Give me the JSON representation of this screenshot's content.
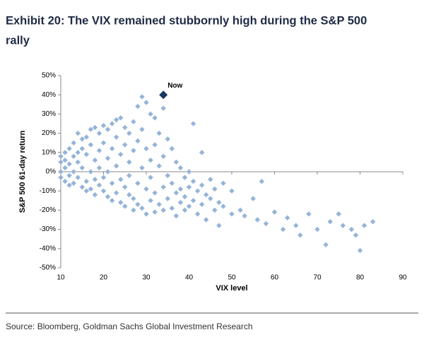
{
  "chart_data": {
    "type": "scatter",
    "title": "Exhibit 20: The VIX remained stubbornly high during the S&P 500 rally",
    "x_label": "VIX level",
    "y_label": "S&P 500 61-day return",
    "source": "Source: Bloomberg, Goldman Sachs Global Investment Research",
    "color": "#95b3d7",
    "x": [
      10,
      10,
      10,
      10,
      11,
      11,
      11,
      11,
      12,
      12,
      12,
      12,
      13,
      13,
      13,
      13,
      14,
      14,
      14,
      14,
      15,
      15,
      15,
      15,
      16,
      16,
      16,
      16,
      17,
      17,
      17,
      17,
      18,
      18,
      18,
      18,
      19,
      19,
      19,
      19,
      20,
      20,
      20,
      20,
      21,
      21,
      21,
      21,
      22,
      22,
      22,
      22,
      23,
      23,
      23,
      23,
      24,
      24,
      24,
      24,
      25,
      25,
      25,
      25,
      26,
      26,
      26,
      26,
      27,
      27,
      27,
      27,
      28,
      28,
      28,
      28,
      29,
      29,
      29,
      29,
      30,
      30,
      30,
      30,
      31,
      31,
      31,
      31,
      32,
      32,
      32,
      32,
      33,
      33,
      33,
      34,
      34,
      34,
      34,
      35,
      35,
      35,
      36,
      36,
      36,
      37,
      37,
      37,
      38,
      38,
      38,
      39,
      39,
      39,
      40,
      40,
      40,
      41,
      41,
      41,
      42,
      42,
      43,
      43,
      43,
      44,
      44,
      45,
      45,
      46,
      46,
      47,
      47,
      48,
      48,
      50,
      50,
      52,
      53,
      55,
      56,
      57,
      58,
      60,
      62,
      63,
      65,
      66,
      68,
      70,
      72,
      73,
      75,
      76,
      78,
      79,
      80,
      81,
      83
    ],
    "values": [
      5,
      0,
      8,
      -3,
      10,
      2,
      -5,
      6,
      12,
      -2,
      4,
      -7,
      15,
      8,
      0,
      -6,
      20,
      10,
      -3,
      5,
      17,
      -8,
      12,
      2,
      18,
      -5,
      9,
      -10,
      22,
      14,
      0,
      -9,
      23,
      6,
      -4,
      -12,
      20,
      11,
      -7,
      2,
      24,
      15,
      -3,
      -10,
      22,
      7,
      -13,
      0,
      25,
      12,
      -6,
      -15,
      27,
      18,
      3,
      -11,
      28,
      9,
      -4,
      -16,
      23,
      14,
      -8,
      -18,
      20,
      5,
      -12,
      -2,
      26,
      11,
      -14,
      -20,
      34,
      16,
      -6,
      -17,
      39,
      22,
      2,
      -19,
      36,
      12,
      -9,
      -22,
      30,
      6,
      -15,
      -3,
      28,
      14,
      -11,
      -21,
      20,
      3,
      -17,
      33,
      8,
      -8,
      -20,
      17,
      -2,
      -14,
      12,
      -6,
      -19,
      5,
      -11,
      -23,
      2,
      -9,
      -16,
      -3,
      -13,
      -20,
      0,
      -8,
      -18,
      25,
      -5,
      -15,
      -10,
      -22,
      10,
      -7,
      -17,
      -12,
      -25,
      -4,
      -14,
      -9,
      -20,
      -16,
      -28,
      -6,
      -18,
      -10,
      -22,
      -20,
      -23,
      -14,
      -25,
      -5,
      -27,
      -21,
      -30,
      -24,
      -28,
      -33,
      -22,
      -30,
      -38,
      -26,
      -22,
      -28,
      -30,
      -33,
      -41,
      -28,
      -26
    ],
    "now": {
      "label": "Now",
      "x": 34,
      "y": 40,
      "color": "#17375e"
    },
    "xlim": [
      10,
      90
    ],
    "xticks": [
      10,
      20,
      30,
      40,
      50,
      60,
      70,
      80,
      90
    ],
    "ylim": [
      -50,
      50
    ],
    "yticks": [
      {
        "value": -50,
        "label": "-50%"
      },
      {
        "value": -40,
        "label": "-40%"
      },
      {
        "value": -30,
        "label": "-30%"
      },
      {
        "value": -20,
        "label": "-20%"
      },
      {
        "value": -10,
        "label": "-10%"
      },
      {
        "value": 0,
        "label": "0%"
      },
      {
        "value": 10,
        "label": "10%"
      },
      {
        "value": 20,
        "label": "20%"
      },
      {
        "value": 30,
        "label": "30%"
      },
      {
        "value": 40,
        "label": "40%"
      },
      {
        "value": 50,
        "label": "50%"
      }
    ]
  }
}
